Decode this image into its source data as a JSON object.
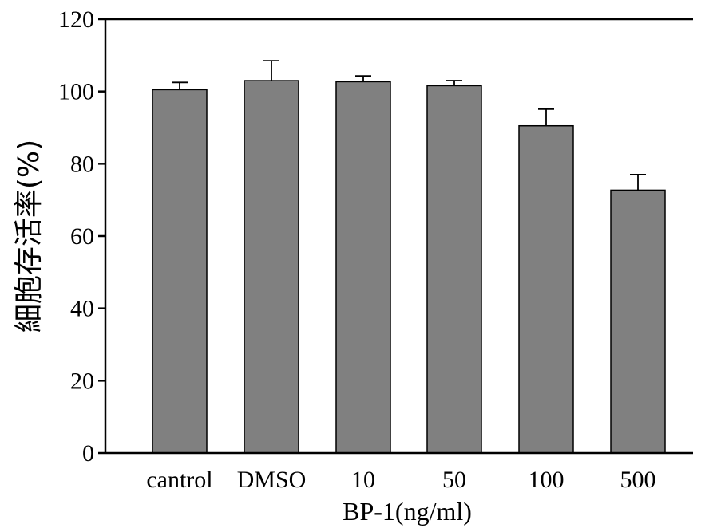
{
  "chart_data": {
    "type": "bar",
    "title": "",
    "xlabel": "BP-1(ng/ml)",
    "ylabel": "細胞存活率(%)",
    "categories": [
      "cantrol",
      "DMSO",
      "10",
      "50",
      "100",
      "500"
    ],
    "series": [
      {
        "values": [
          100.5,
          103,
          102.7,
          101.6,
          90.5,
          72.7
        ],
        "error": [
          2,
          5.5,
          1.6,
          1.4,
          4.6,
          4.3
        ]
      }
    ],
    "ylim": [
      0,
      120
    ],
    "yticks": [
      0,
      20,
      40,
      60,
      80,
      100,
      120
    ],
    "grid": false,
    "legend": "none",
    "colors": {
      "bar": "#808080",
      "axis": "#000000"
    }
  }
}
